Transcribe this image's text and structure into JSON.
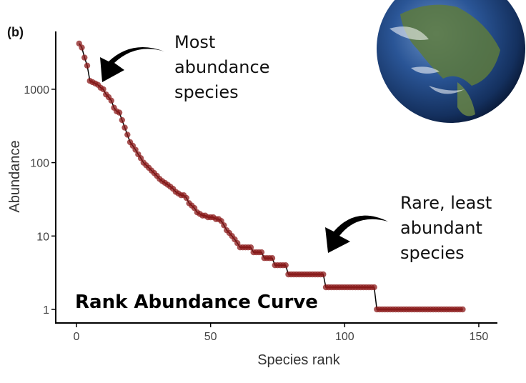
{
  "panel_label": "(b)",
  "annotations": {
    "most": [
      "Most",
      "abundance",
      "species"
    ],
    "rare": [
      "Rare, least",
      "abundant",
      "species"
    ],
    "title": "Rank Abundance Curve"
  },
  "colors": {
    "point": "#8b1a1a",
    "line": "#000000",
    "earth_ocean": "#1d3f7a",
    "earth_land": "#5a7a3a"
  },
  "chart_data": {
    "type": "scatter",
    "title": "Rank Abundance Curve",
    "xlabel": "Species rank",
    "ylabel": "Abundance",
    "xlim": [
      -5,
      157
    ],
    "ylim": [
      0.75,
      6000
    ],
    "yscale": "log",
    "xticks": [
      0,
      50,
      100,
      150
    ],
    "xtick_labels": [
      "0",
      "50",
      "100",
      "150"
    ],
    "yticks": [
      1,
      10,
      100,
      1000
    ],
    "ytick_labels": [
      "1",
      "10",
      "100",
      "1000"
    ],
    "grid": false,
    "abundance_by_rank": [
      4200,
      3700,
      2700,
      2100,
      1300,
      1250,
      1200,
      1150,
      1050,
      1000,
      850,
      780,
      700,
      560,
      500,
      480,
      380,
      300,
      240,
      190,
      170,
      150,
      130,
      115,
      100,
      92,
      85,
      78,
      72,
      66,
      60,
      56,
      53,
      50,
      47,
      44,
      40,
      38,
      36,
      36,
      33,
      28,
      26,
      24,
      21,
      20,
      19,
      19,
      18,
      18,
      18,
      17,
      17,
      16,
      14,
      12,
      11,
      10,
      9,
      8,
      7,
      7,
      7,
      7,
      7,
      6,
      6,
      6,
      6,
      5,
      5,
      5,
      5,
      4,
      4,
      4,
      4,
      4,
      3,
      3,
      3,
      3,
      3,
      3,
      3,
      3,
      3,
      3,
      3,
      3,
      3,
      3,
      2,
      2,
      2,
      2,
      2,
      2,
      2,
      2,
      2,
      2,
      2,
      2,
      2,
      2,
      2,
      2,
      2,
      2,
      2,
      1,
      1,
      1,
      1,
      1,
      1,
      1,
      1,
      1,
      1,
      1,
      1,
      1,
      1,
      1,
      1,
      1,
      1,
      1,
      1,
      1,
      1,
      1,
      1,
      1,
      1,
      1,
      1,
      1,
      1,
      1,
      1,
      1
    ]
  }
}
